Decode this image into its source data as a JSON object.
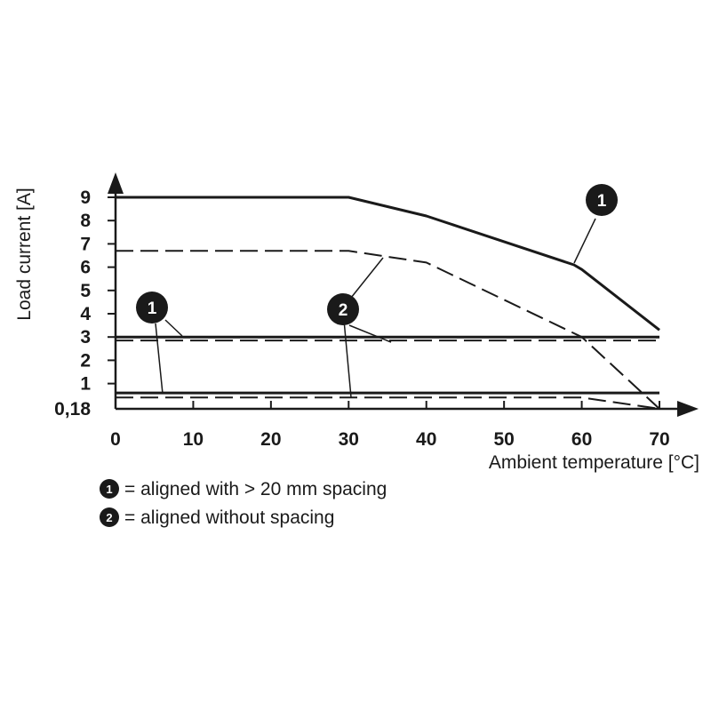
{
  "chart_data": {
    "type": "line",
    "xlabel": "Ambient temperature [°C]",
    "ylabel": "Load current [A]",
    "xlim": [
      0,
      70
    ],
    "ylim": [
      0.18,
      9
    ],
    "x_ticks": [
      {
        "value": 0,
        "label": "0"
      },
      {
        "value": 10,
        "label": "10"
      },
      {
        "value": 20,
        "label": "20"
      },
      {
        "value": 30,
        "label": "30"
      },
      {
        "value": 40,
        "label": "40"
      },
      {
        "value": 50,
        "label": "50"
      },
      {
        "value": 60,
        "label": "60"
      },
      {
        "value": 70,
        "label": "70"
      }
    ],
    "y_ticks": [
      {
        "value": 0.18,
        "label": "0,18"
      },
      {
        "value": 1,
        "label": "1"
      },
      {
        "value": 2,
        "label": "2"
      },
      {
        "value": 3,
        "label": "3"
      },
      {
        "value": 4,
        "label": "4"
      },
      {
        "value": 5,
        "label": "5"
      },
      {
        "value": 6,
        "label": "6"
      },
      {
        "value": 7,
        "label": "7"
      },
      {
        "value": 8,
        "label": "8"
      },
      {
        "value": 9,
        "label": "9"
      }
    ],
    "grid": false,
    "series": [
      {
        "marker": "1",
        "style": "solid",
        "x": [
          0,
          30,
          40,
          59,
          60,
          70
        ],
        "y": [
          9,
          9,
          8.2,
          6.1,
          5.9,
          3.3
        ]
      },
      {
        "marker": "2",
        "style": "dashed",
        "x": [
          0,
          30,
          40,
          60,
          70
        ],
        "y": [
          6.7,
          6.7,
          6.2,
          3.0,
          0.18
        ]
      },
      {
        "marker": "1",
        "style": "solid",
        "x": [
          0,
          70
        ],
        "y": [
          3,
          3
        ]
      },
      {
        "marker": "2",
        "style": "dashed",
        "x": [
          0,
          70
        ],
        "y": [
          2.85,
          2.85
        ]
      },
      {
        "marker": "1",
        "style": "solid",
        "x": [
          0,
          70
        ],
        "y": [
          0.6,
          0.6
        ]
      },
      {
        "marker": "2",
        "style": "dashed",
        "x": [
          0,
          60,
          70
        ],
        "y": [
          0.4,
          0.4,
          0.18
        ]
      }
    ],
    "markers": [
      {
        "label": "1",
        "x": 62.5,
        "y": 8.9,
        "target_x": 59.5,
        "target_y": 6.0
      },
      {
        "label": "2",
        "x": 29.5,
        "y": 4.2,
        "targets": [
          {
            "x": 34.5,
            "y": 6.5
          },
          {
            "x": 35.5,
            "y": 2.85
          }
        ]
      },
      {
        "label": "1",
        "x": 5,
        "y": 4.2,
        "targets": [
          {
            "x": 8.5,
            "y": 3
          },
          {
            "x": 6,
            "y": 0.55
          }
        ]
      },
      {
        "label": "2",
        "x": 29.5,
        "y": 4.2,
        "targets": [
          {
            "x": 30.5,
            "y": 0.45
          }
        ]
      }
    ],
    "legend": {
      "position": "bottom-left",
      "items": [
        {
          "marker": "1",
          "text": "= aligned with > 20 mm spacing"
        },
        {
          "marker": "2",
          "text": "= aligned without spacing"
        }
      ]
    }
  }
}
